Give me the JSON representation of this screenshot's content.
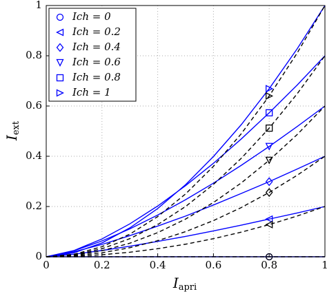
{
  "chart_data": {
    "type": "line",
    "xlabel": {
      "main": "I",
      "sub": "apri"
    },
    "ylabel": {
      "main": "I",
      "sub": "ext"
    },
    "x": [
      0,
      0.1,
      0.2,
      0.3,
      0.4,
      0.5,
      0.6,
      0.7,
      0.8,
      0.9,
      1
    ],
    "xlim": [
      0,
      1
    ],
    "ylim": [
      0,
      1
    ],
    "xticks": [
      0,
      0.2,
      0.4,
      0.6,
      0.8,
      1
    ],
    "yticks": [
      0,
      0.2,
      0.4,
      0.6,
      0.8,
      1
    ],
    "grid": true,
    "legend": "upper left",
    "series": [
      {
        "name": "Ich = 0",
        "color": "#0000ff",
        "marker": "circle",
        "values": [
          0,
          0,
          0,
          0,
          0,
          0,
          0,
          0,
          0,
          0,
          0
        ]
      },
      {
        "name": "Ich = 0.2",
        "color": "#0000ff",
        "marker": "triangle-left",
        "values": [
          0,
          0.01,
          0.025,
          0.042,
          0.061,
          0.081,
          0.103,
          0.126,
          0.15,
          0.174,
          0.2
        ]
      },
      {
        "name": "Ich = 0.4",
        "color": "#0000ff",
        "marker": "diamond",
        "values": [
          0,
          0.02,
          0.049,
          0.084,
          0.122,
          0.162,
          0.206,
          0.252,
          0.299,
          0.349,
          0.4
        ]
      },
      {
        "name": "Ich = 0.6",
        "color": "#0000ff",
        "marker": "triangle-down",
        "values": [
          0,
          0.024,
          0.063,
          0.111,
          0.166,
          0.227,
          0.293,
          0.364,
          0.439,
          0.518,
          0.6
        ]
      },
      {
        "name": "Ich = 0.8",
        "color": "#0000ff",
        "marker": "square",
        "values": [
          0,
          0.025,
          0.071,
          0.131,
          0.202,
          0.283,
          0.372,
          0.469,
          0.573,
          0.683,
          0.8
        ]
      },
      {
        "name": "Ich = 1",
        "color": "#0000ff",
        "marker": "triangle-right",
        "values": [
          0,
          0.016,
          0.055,
          0.115,
          0.192,
          0.287,
          0.399,
          0.526,
          0.669,
          0.827,
          1
        ]
      },
      {
        "color": "#000000",
        "dash": true,
        "marker": "circle",
        "values": [
          0,
          0,
          0,
          0,
          0,
          0,
          0,
          0,
          0,
          0,
          0
        ]
      },
      {
        "color": "#000000",
        "dash": true,
        "marker": "triangle-left",
        "values": [
          0,
          0.002,
          0.008,
          0.018,
          0.032,
          0.05,
          0.072,
          0.098,
          0.128,
          0.162,
          0.2
        ]
      },
      {
        "color": "#000000",
        "dash": true,
        "marker": "diamond",
        "values": [
          0,
          0.004,
          0.016,
          0.036,
          0.064,
          0.1,
          0.144,
          0.196,
          0.256,
          0.324,
          0.4
        ]
      },
      {
        "color": "#000000",
        "dash": true,
        "marker": "triangle-down",
        "values": [
          0,
          0.006,
          0.024,
          0.054,
          0.096,
          0.15,
          0.216,
          0.294,
          0.384,
          0.486,
          0.6
        ]
      },
      {
        "color": "#000000",
        "dash": true,
        "marker": "square",
        "values": [
          0,
          0.008,
          0.032,
          0.072,
          0.128,
          0.2,
          0.288,
          0.392,
          0.512,
          0.648,
          0.8
        ]
      },
      {
        "color": "#000000",
        "dash": true,
        "marker": "triangle-right",
        "values": [
          0,
          0.01,
          0.04,
          0.09,
          0.16,
          0.25,
          0.36,
          0.49,
          0.64,
          0.81,
          1
        ]
      }
    ]
  }
}
